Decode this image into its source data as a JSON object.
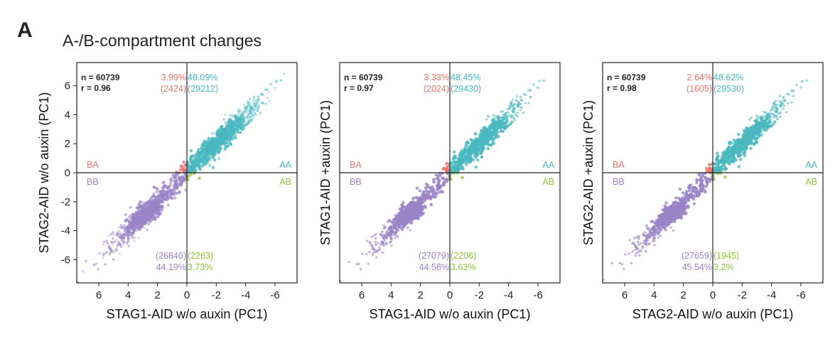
{
  "panel_letter": "A",
  "title": "A-/B-compartment changes",
  "colors": {
    "AA": "#4bb8c0",
    "BA": "#e9756b",
    "BB": "#9b84c6",
    "AB": "#92bf3c"
  },
  "chart_data": [
    {
      "type": "scatter",
      "xlabel": "STAG1-AID w/o auxin (PC1)",
      "ylabel": "STAG2-AID w/o auxin (PC1)",
      "xlim": [
        7.5,
        -7.5
      ],
      "ylim": [
        -7.6,
        7.6
      ],
      "x_ticks": [
        6,
        4,
        2,
        0,
        -2,
        -4,
        -6
      ],
      "x_tick_labels": [
        "6",
        "4",
        "2",
        "0",
        "-2",
        "-4",
        "-6"
      ],
      "y_ticks": [
        6,
        4,
        2,
        0,
        -2,
        -4,
        -6
      ],
      "y_tick_labels": [
        "6",
        "4",
        "2",
        "0",
        "-2",
        "-4",
        "-6"
      ],
      "n": "n = 60739",
      "r": "r = 0.96",
      "correlation": 0.96,
      "quadrant_labels": {
        "BA": "BA",
        "AA": "AA",
        "BB": "BB",
        "AB": "AB"
      },
      "BA_pct": "3.99%",
      "BA_count": "(2424)",
      "AA_pct": "48.09%",
      "AA_count": "(29212)",
      "BB_pct": "44.19%",
      "BB_count": "(26840)",
      "AB_pct": "3.73%",
      "AB_count": "(2263)",
      "grid": false
    },
    {
      "type": "scatter",
      "xlabel": "STAG1-AID w/o auxin (PC1)",
      "ylabel": "STAG1-AID +auxin (PC1)",
      "xlim": [
        7.5,
        -7.5
      ],
      "ylim": [
        -7.6,
        7.6
      ],
      "x_ticks": [
        6,
        4,
        2,
        0,
        -2,
        -4,
        -6
      ],
      "x_tick_labels": [
        "6",
        "4",
        "2",
        "0",
        "-2",
        "-4",
        "-6"
      ],
      "y_ticks": [],
      "y_tick_labels": [],
      "n": "n = 60739",
      "r": "r = 0.97",
      "correlation": 0.97,
      "quadrant_labels": {
        "BA": "BA",
        "AA": "AA",
        "BB": "BB",
        "AB": "AB"
      },
      "BA_pct": "3.33%",
      "BA_count": "(2024)",
      "AA_pct": "48.45%",
      "AA_count": "(29430)",
      "BB_pct": "44.58%",
      "BB_count": "(27079)",
      "AB_pct": "3.63%",
      "AB_count": "(2206)",
      "grid": false
    },
    {
      "type": "scatter",
      "xlabel": "STAG2-AID w/o auxin (PC1)",
      "ylabel": "STAG2-AID +auxin (PC1)",
      "xlim": [
        7.5,
        -7.5
      ],
      "ylim": [
        -7.6,
        7.6
      ],
      "x_ticks": [
        6,
        4,
        2,
        0,
        -2,
        -4,
        -6
      ],
      "x_tick_labels": [
        "6",
        "4",
        "2",
        "0",
        "-2",
        "-4",
        "-6"
      ],
      "y_ticks": [],
      "y_tick_labels": [],
      "n": "n = 60739",
      "r": "r = 0.98",
      "correlation": 0.98,
      "quadrant_labels": {
        "BA": "BA",
        "AA": "AA",
        "BB": "BB",
        "AB": "AB"
      },
      "BA_pct": "2.64%",
      "BA_count": "(1605)",
      "AA_pct": "48.62%",
      "AA_count": "(29530)",
      "BB_pct": "45.54%",
      "BB_count": "(27659)",
      "AB_pct": "3.2%",
      "AB_count": "(1945)",
      "grid": false
    }
  ]
}
